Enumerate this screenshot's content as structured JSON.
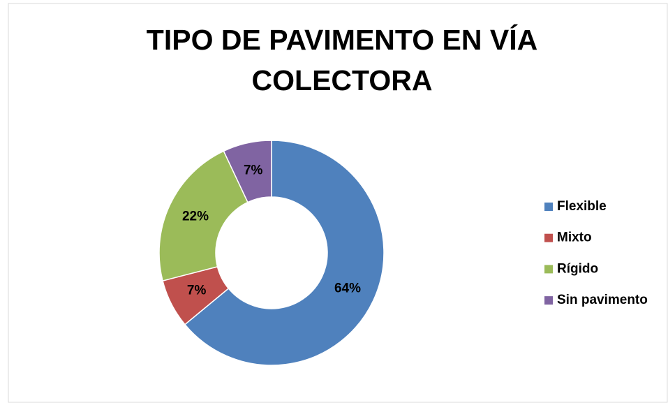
{
  "chart_data": {
    "type": "donut",
    "title": "TIPO DE PAVIMENTO EN VÍA COLECTORA",
    "categories": [
      "Flexible",
      "Mixto",
      "Rígido",
      "Sin pavimento"
    ],
    "values": [
      64,
      7,
      22,
      7
    ],
    "value_labels": [
      "64%",
      "7%",
      "22%",
      "7%"
    ],
    "colors": [
      "#4f81bd",
      "#c0504d",
      "#9bbb59",
      "#8064a2"
    ],
    "legend": "right"
  }
}
